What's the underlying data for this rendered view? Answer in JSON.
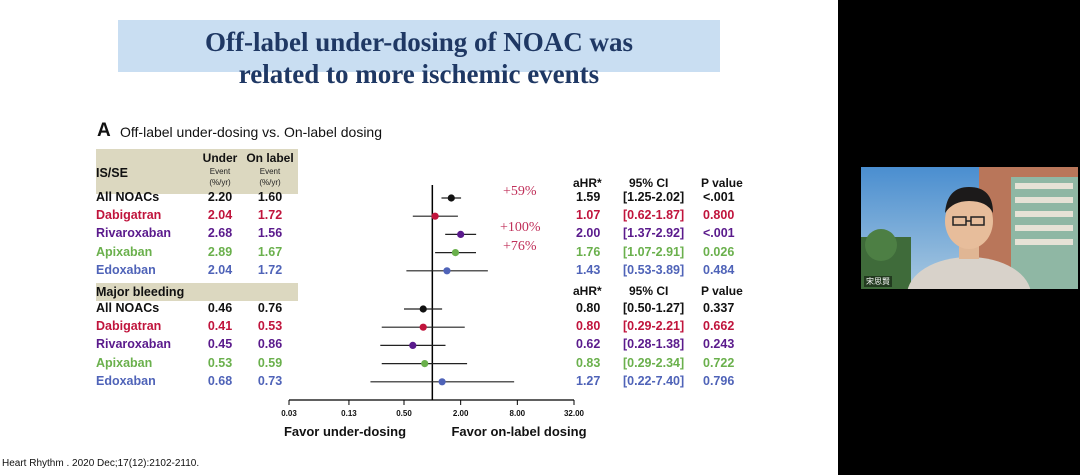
{
  "slide": {
    "title_line1": "Off-label under-dosing of NOAC was",
    "title_line2": "related to more ischemic events",
    "panel_letter": "A",
    "panel_title": "Off-label under-dosing vs. On-label dosing",
    "citation": "Heart Rhythm . 2020 Dec;17(12):2102-2110."
  },
  "table_header": {
    "col_under": "Under",
    "col_on": "On label",
    "sub_under_1": "Event",
    "sub_under_2": "(%/yr)",
    "sub_on_1": "Event",
    "sub_on_2": "(%/yr)",
    "ahr": "aHR*",
    "ci": "95% CI",
    "p": "P value"
  },
  "colors": {
    "All NOACs": "#111111",
    "Dabigatran": "#c0143c",
    "Rivaroxaban": "#5a1a8c",
    "Apixaban": "#6ab04c",
    "Edoxaban": "#4f63b8"
  },
  "chart_data": {
    "type": "forest",
    "x_scale": "log",
    "x_ticks": [
      "0.03",
      "0.13",
      "0.50",
      "2.00",
      "8.00",
      "32.00"
    ],
    "x_tick_values": [
      0.03,
      0.13,
      0.5,
      2.0,
      8.0,
      32.0
    ],
    "xlabel_left": "Favor under-dosing",
    "xlabel_right": "Favor on-label dosing",
    "reference_line": 1,
    "sections": [
      {
        "name": "IS/SE",
        "header_ahr": "aHR*",
        "header_ci": "95% CI",
        "header_p": "P value",
        "rows": [
          {
            "label": "All NOACs",
            "under": "2.20",
            "on": "1.60",
            "ahr": "1.59",
            "ci": "[1.25-2.02]",
            "p": "<.001",
            "est": 1.59,
            "lo": 1.25,
            "hi": 2.02,
            "annotation": "+59%"
          },
          {
            "label": "Dabigatran",
            "under": "2.04",
            "on": "1.72",
            "ahr": "1.07",
            "ci": "[0.62-1.87]",
            "p": "0.800",
            "est": 1.07,
            "lo": 0.62,
            "hi": 1.87,
            "annotation": ""
          },
          {
            "label": "Rivaroxaban",
            "under": "2.68",
            "on": "1.56",
            "ahr": "2.00",
            "ci": "[1.37-2.92]",
            "p": "<.001",
            "est": 2.0,
            "lo": 1.37,
            "hi": 2.92,
            "annotation": "+100%"
          },
          {
            "label": "Apixaban",
            "under": "2.89",
            "on": "1.67",
            "ahr": "1.76",
            "ci": "[1.07-2.91]",
            "p": "0.026",
            "est": 1.76,
            "lo": 1.07,
            "hi": 2.91,
            "annotation": "+76%"
          },
          {
            "label": "Edoxaban",
            "under": "2.04",
            "on": "1.72",
            "ahr": "1.43",
            "ci": "[0.53-3.89]",
            "p": "0.484",
            "est": 1.43,
            "lo": 0.53,
            "hi": 3.89,
            "annotation": ""
          }
        ]
      },
      {
        "name": "Major bleeding",
        "header_ahr": "aHR*",
        "header_ci": "95% CI",
        "header_p": "P value",
        "rows": [
          {
            "label": "All NOACs",
            "under": "0.46",
            "on": "0.76",
            "ahr": "0.80",
            "ci": "[0.50-1.27]",
            "p": "0.337",
            "est": 0.8,
            "lo": 0.5,
            "hi": 1.27,
            "annotation": ""
          },
          {
            "label": "Dabigatran",
            "under": "0.41",
            "on": "0.53",
            "ahr": "0.80",
            "ci": "[0.29-2.21]",
            "p": "0.662",
            "est": 0.8,
            "lo": 0.29,
            "hi": 2.21,
            "annotation": ""
          },
          {
            "label": "Rivaroxaban",
            "under": "0.45",
            "on": "0.86",
            "ahr": "0.62",
            "ci": "[0.28-1.38]",
            "p": "0.243",
            "est": 0.62,
            "lo": 0.28,
            "hi": 1.38,
            "annotation": ""
          },
          {
            "label": "Apixaban",
            "under": "0.53",
            "on": "0.59",
            "ahr": "0.83",
            "ci": "[0.29-2.34]",
            "p": "0.722",
            "est": 0.83,
            "lo": 0.29,
            "hi": 2.34,
            "annotation": ""
          },
          {
            "label": "Edoxaban",
            "under": "0.68",
            "on": "0.73",
            "ahr": "1.27",
            "ci": "[0.22-7.40]",
            "p": "0.796",
            "est": 1.27,
            "lo": 0.22,
            "hi": 7.4,
            "annotation": ""
          }
        ]
      }
    ]
  },
  "webcam": {
    "name_label": "宋思賢"
  }
}
